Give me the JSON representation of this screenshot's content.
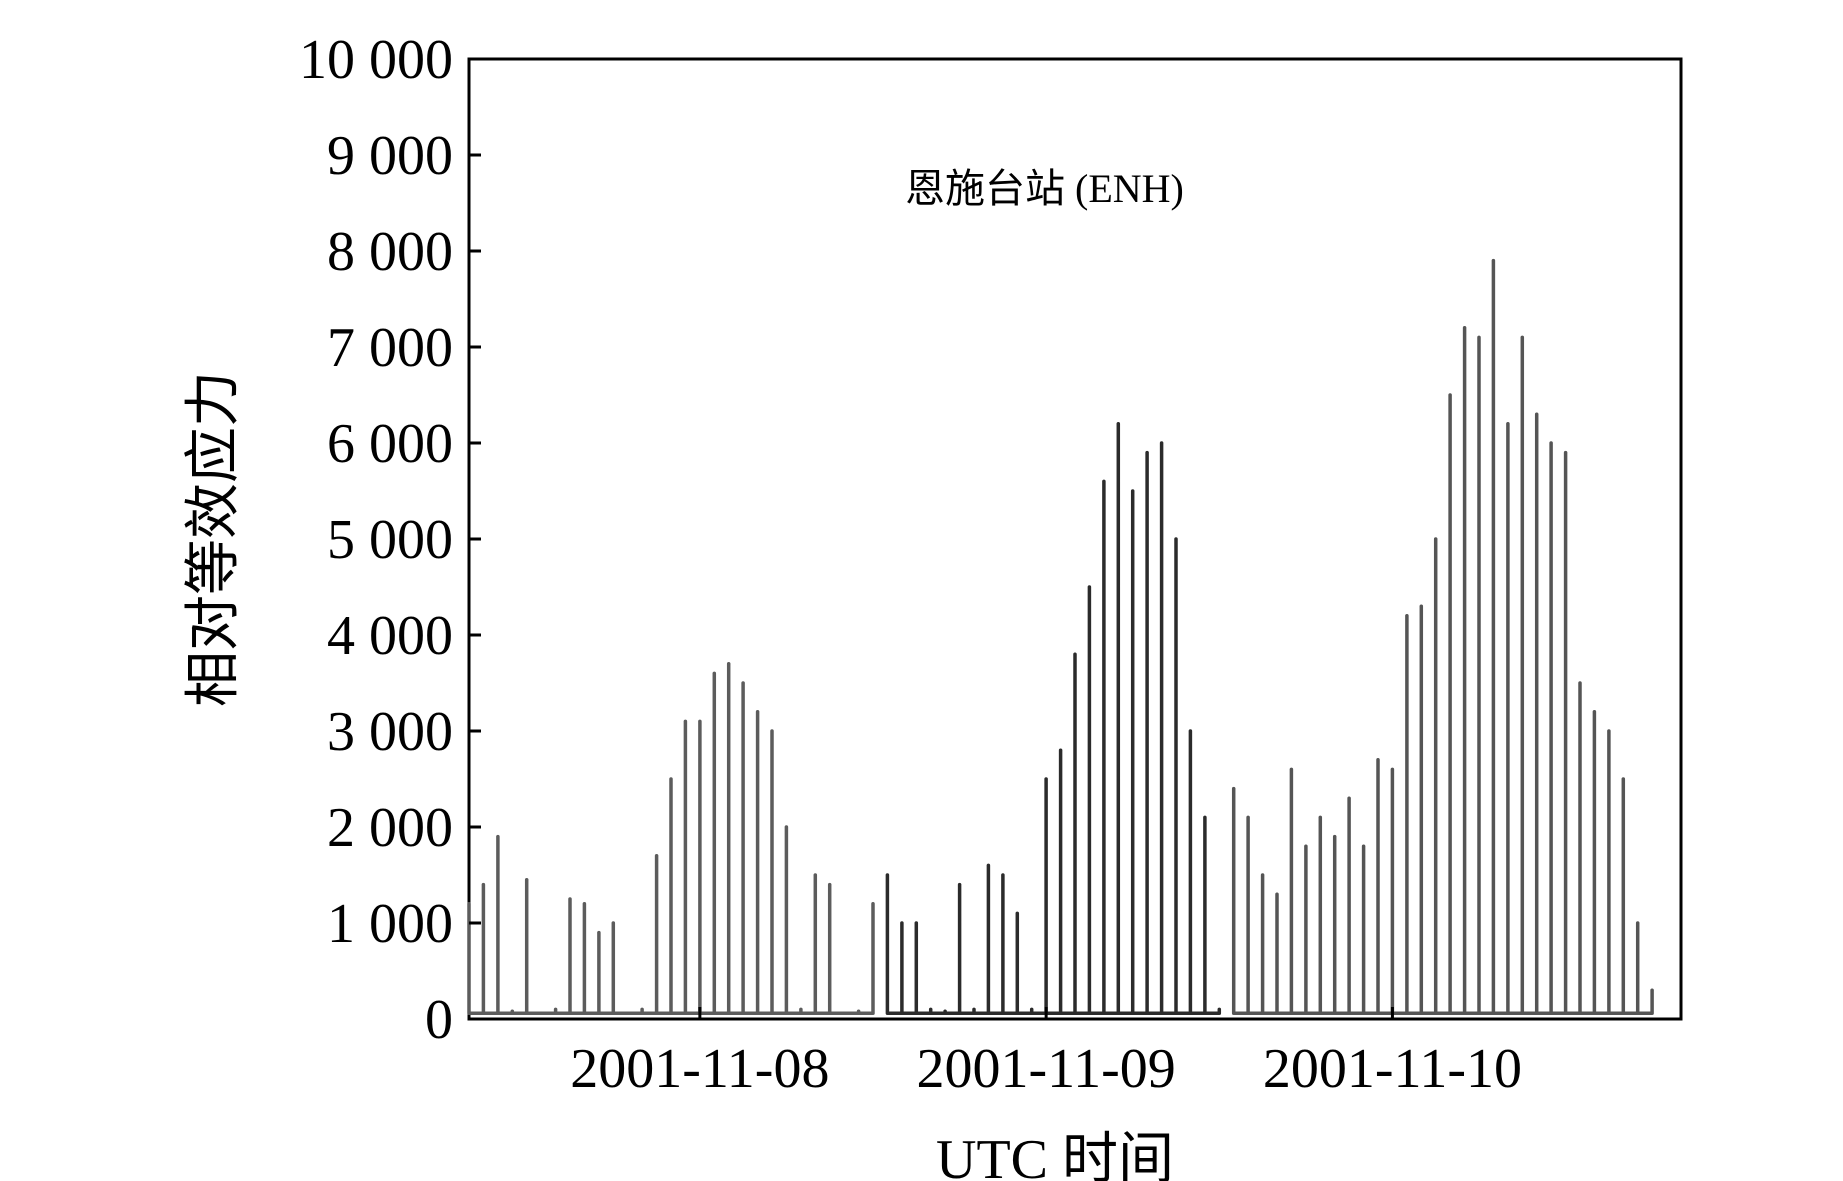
{
  "chart_data": {
    "type": "line",
    "annotation": "恩施台站 (ENH)",
    "xlabel": "UTC 时间",
    "ylabel": "相对等效应力",
    "ylim": [
      0,
      10000
    ],
    "yticks": [
      0,
      1000,
      2000,
      3000,
      4000,
      5000,
      6000,
      7000,
      8000,
      9000,
      10000
    ],
    "ytick_labels": [
      "0",
      "1 000",
      "2 000",
      "3 000",
      "4 000",
      "5 000",
      "6 000",
      "7 000",
      "8 000",
      "9 000",
      "10 000"
    ],
    "xlim": [
      "2001-11-07 08:00",
      "2001-11-10 20:00"
    ],
    "xticks": [
      "2001-11-08",
      "2001-11-09",
      "2001-11-10"
    ],
    "grid": false,
    "series": [
      {
        "color": "#5c5c5c",
        "x": [
          "2001-11-07 08:00",
          "2001-11-07 09:00",
          "2001-11-07 10:00",
          "2001-11-07 11:00",
          "2001-11-07 12:00",
          "2001-11-07 13:00",
          "2001-11-07 14:00",
          "2001-11-07 15:00",
          "2001-11-07 16:00",
          "2001-11-07 17:00",
          "2001-11-07 18:00",
          "2001-11-07 19:00",
          "2001-11-07 20:00",
          "2001-11-07 21:00",
          "2001-11-07 22:00",
          "2001-11-07 23:00",
          "2001-11-08 00:00",
          "2001-11-08 01:00",
          "2001-11-08 02:00",
          "2001-11-08 03:00",
          "2001-11-08 04:00",
          "2001-11-08 05:00",
          "2001-11-08 06:00",
          "2001-11-08 07:00",
          "2001-11-08 08:00",
          "2001-11-08 09:00",
          "2001-11-08 10:00",
          "2001-11-08 11:00",
          "2001-11-08 12:00"
        ],
        "values": [
          1200,
          1400,
          1900,
          80,
          1450,
          60,
          100,
          1250,
          1200,
          900,
          1000,
          60,
          100,
          1700,
          2500,
          3100,
          3100,
          3600,
          3700,
          3500,
          3200,
          3000,
          2000,
          100,
          1500,
          1400,
          60,
          80,
          1200
        ]
      },
      {
        "color": "#2b2b2b",
        "x": [
          "2001-11-08 13:00",
          "2001-11-08 14:00",
          "2001-11-08 15:00",
          "2001-11-08 16:00",
          "2001-11-08 17:00",
          "2001-11-08 18:00",
          "2001-11-08 19:00",
          "2001-11-08 20:00",
          "2001-11-08 21:00",
          "2001-11-08 22:00",
          "2001-11-08 23:00",
          "2001-11-09 00:00",
          "2001-11-09 01:00",
          "2001-11-09 02:00",
          "2001-11-09 03:00",
          "2001-11-09 04:00",
          "2001-11-09 05:00",
          "2001-11-09 06:00",
          "2001-11-09 07:00",
          "2001-11-09 08:00",
          "2001-11-09 09:00",
          "2001-11-09 10:00",
          "2001-11-09 11:00",
          "2001-11-09 12:00"
        ],
        "values": [
          1500,
          1000,
          1000,
          100,
          80,
          1400,
          100,
          1600,
          1500,
          1100,
          100,
          2500,
          2800,
          3800,
          4500,
          5600,
          6200,
          5500,
          5900,
          6000,
          5000,
          3000,
          2100,
          100
        ]
      },
      {
        "color": "#555555",
        "x": [
          "2001-11-09 13:00",
          "2001-11-09 14:00",
          "2001-11-09 15:00",
          "2001-11-09 16:00",
          "2001-11-09 17:00",
          "2001-11-09 18:00",
          "2001-11-09 19:00",
          "2001-11-09 20:00",
          "2001-11-09 21:00",
          "2001-11-09 22:00",
          "2001-11-09 23:00",
          "2001-11-10 00:00",
          "2001-11-10 01:00",
          "2001-11-10 02:00",
          "2001-11-10 03:00",
          "2001-11-10 04:00",
          "2001-11-10 05:00",
          "2001-11-10 06:00",
          "2001-11-10 07:00",
          "2001-11-10 08:00",
          "2001-11-10 09:00",
          "2001-11-10 10:00",
          "2001-11-10 11:00",
          "2001-11-10 12:00",
          "2001-11-10 13:00",
          "2001-11-10 14:00",
          "2001-11-10 15:00",
          "2001-11-10 16:00",
          "2001-11-10 17:00",
          "2001-11-10 18:00"
        ],
        "values": [
          2400,
          2100,
          1500,
          1300,
          2600,
          1800,
          2100,
          1900,
          2300,
          1800,
          2700,
          2600,
          4200,
          4300,
          5000,
          6500,
          7200,
          7100,
          7900,
          6200,
          7100,
          6300,
          6000,
          5900,
          3500,
          3200,
          3000,
          2500,
          1000,
          300
        ]
      }
    ]
  }
}
